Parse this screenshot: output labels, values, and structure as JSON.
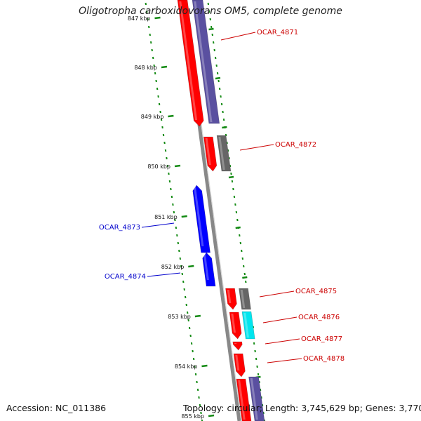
{
  "title": "Oligotropha carboxidovorans OM5, complete genome",
  "accession": "Accession: NC_011386",
  "topology": "Topology: circular; Length: 3,745,629 bp; Genes: 3,770",
  "colors": {
    "forward_cds": "#ff0000",
    "reverse_cds": "#0000ff",
    "forward_other": "#666666",
    "highlight": "#00e5ee",
    "purple": "#5a50a0",
    "backbone": "#888888",
    "ticks": "#138a13",
    "forward_label": "#cc0000",
    "reverse_label": "#0000cc"
  },
  "ticks": [
    "847 kbp",
    "848 kbp",
    "849 kbp",
    "850 kbp",
    "851 kbp",
    "852 kbp",
    "853 kbp",
    "854 kbp",
    "855 kbp"
  ],
  "genes": [
    {
      "name": "OCAR_4871",
      "strand": "forward"
    },
    {
      "name": "OCAR_4872",
      "strand": "forward"
    },
    {
      "name": "OCAR_4873",
      "strand": "reverse"
    },
    {
      "name": "OCAR_4874",
      "strand": "reverse"
    },
    {
      "name": "OCAR_4875",
      "strand": "forward"
    },
    {
      "name": "OCAR_4876",
      "strand": "forward"
    },
    {
      "name": "OCAR_4877",
      "strand": "forward"
    },
    {
      "name": "OCAR_4878",
      "strand": "forward"
    }
  ]
}
